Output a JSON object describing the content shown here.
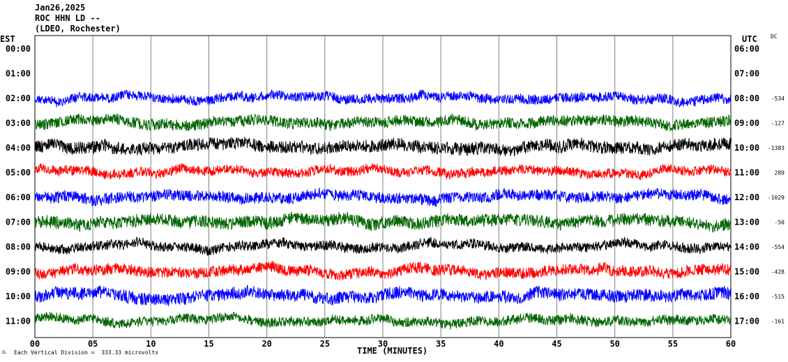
{
  "header": {
    "date": "Jan26,2025",
    "station": "ROC HHN LD --",
    "network": "(LDEO, Rochester)"
  },
  "left_tz": "EST",
  "right_tz": "UTC",
  "dc_label": "DC",
  "footer": {
    "note": "Each Vertical Division =  333.33 microvolts",
    "mark": "JL"
  },
  "colors": [
    "#0000ff",
    "#006400",
    "#000000",
    "#ff0000"
  ],
  "chart_data": {
    "type": "line",
    "xlabel": "TIME (MINUTES)",
    "xlim": [
      0,
      60
    ],
    "x_ticks": [
      "00",
      "05",
      "10",
      "15",
      "20",
      "25",
      "30",
      "35",
      "40",
      "45",
      "50",
      "55",
      "60"
    ],
    "rows": [
      {
        "est": "00:00",
        "utc": "06:00",
        "dc": ""
      },
      {
        "est": "01:00",
        "utc": "07:00",
        "dc": ""
      },
      {
        "est": "02:00",
        "utc": "08:00",
        "dc": "-534"
      },
      {
        "est": "03:00",
        "utc": "09:00",
        "dc": "-127"
      },
      {
        "est": "04:00",
        "utc": "10:00",
        "dc": "-1383"
      },
      {
        "est": "05:00",
        "utc": "11:00",
        "dc": "289"
      },
      {
        "est": "06:00",
        "utc": "12:00",
        "dc": "-1029"
      },
      {
        "est": "07:00",
        "utc": "13:00",
        "dc": "-50"
      },
      {
        "est": "08:00",
        "utc": "14:00",
        "dc": "-554"
      },
      {
        "est": "09:00",
        "utc": "15:00",
        "dc": "-428"
      },
      {
        "est": "10:00",
        "utc": "16:00",
        "dc": "-515"
      },
      {
        "est": "11:00",
        "utc": "17:00",
        "dc": "-161"
      }
    ],
    "traces": [
      {
        "row": 2,
        "color": "#0000ff"
      },
      {
        "row": 3,
        "color": "#006400"
      },
      {
        "row": 4,
        "color": "#000000"
      },
      {
        "row": 5,
        "color": "#ff0000"
      },
      {
        "row": 6,
        "color": "#0000ff"
      },
      {
        "row": 7,
        "color": "#006400"
      },
      {
        "row": 8,
        "color": "#000000"
      },
      {
        "row": 9,
        "color": "#ff0000"
      },
      {
        "row": 10,
        "color": "#0000ff"
      },
      {
        "row": 11,
        "color": "#006400"
      }
    ]
  }
}
